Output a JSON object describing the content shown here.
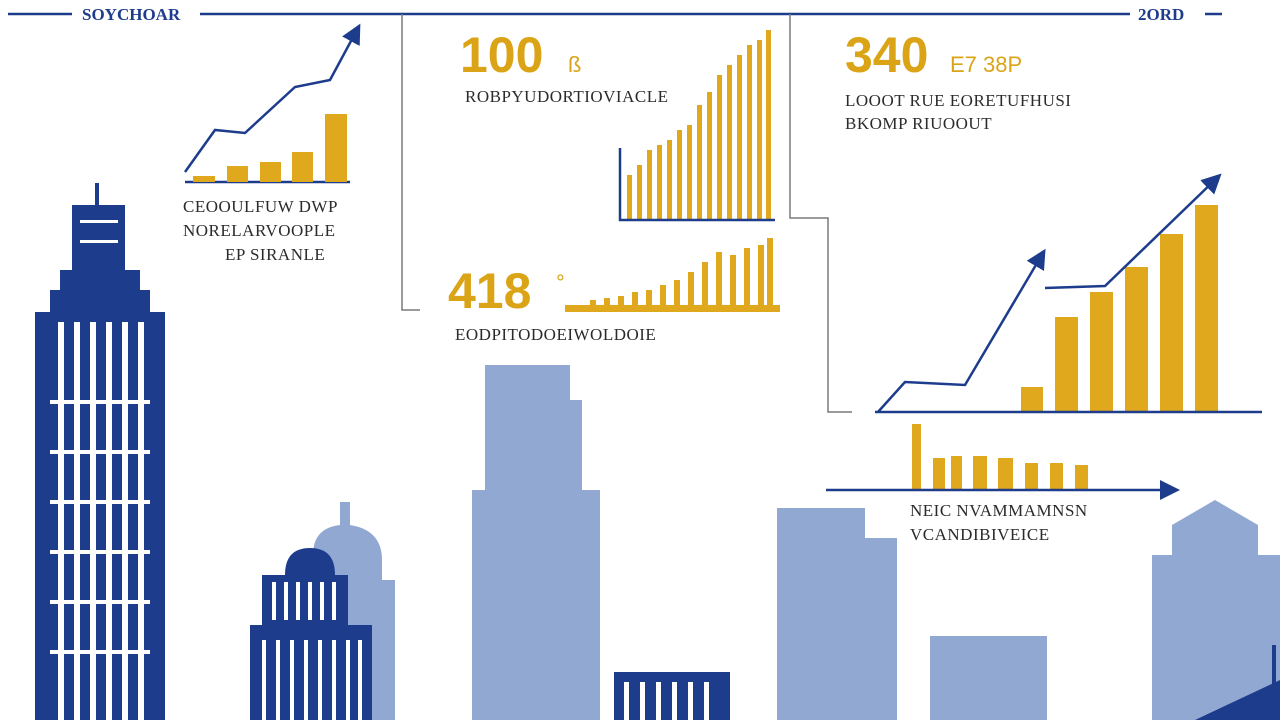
{
  "header": {
    "left": "SOYCHOAR",
    "right": "2ORD"
  },
  "panels": [
    {
      "lines": [
        "CEOOULFUW DWP",
        "NORELARVOOPLE",
        "EP SIRANLE"
      ]
    },
    {
      "value": 100,
      "suffix": "ß",
      "caption": "ROBPYUDORTIOVIACLE"
    },
    {
      "value": 418,
      "suffix": "°",
      "caption": "EODPITODOEIWOLDOIE"
    },
    {
      "value": 340,
      "suffix": "E7 38P",
      "lines": [
        "LOOOT RUE EORETUFHUSI",
        "BKOMP RIUOOUT"
      ]
    },
    {
      "lines": [
        "NEIC NVAMMAMNSN",
        "VCANDIBIVEICE"
      ]
    }
  ]
}
